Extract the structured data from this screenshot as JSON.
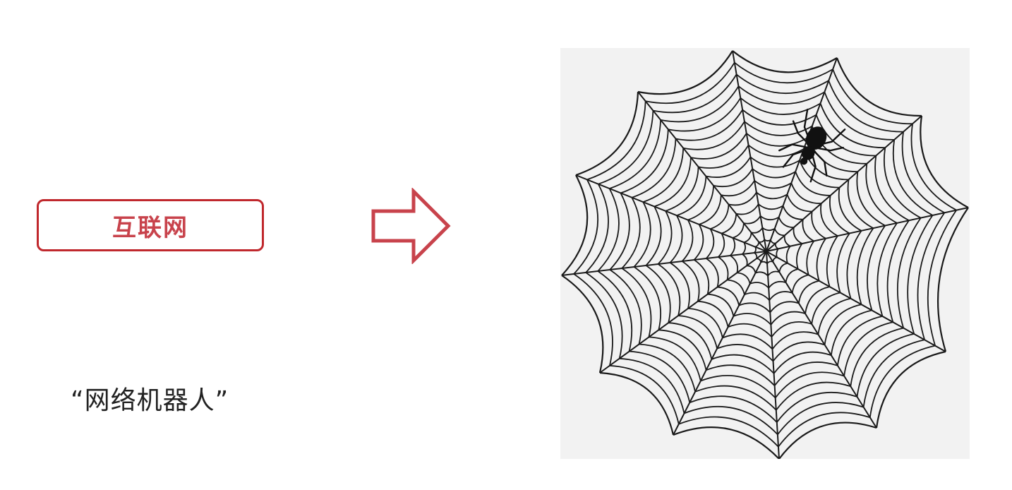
{
  "left_box": {
    "label": "互联网"
  },
  "caption": {
    "text": "“网络机器人”"
  },
  "colors": {
    "accent": "#c0282d",
    "label_text": "#c8434c",
    "web_background": "#f2f2f2",
    "web_lines": "#1a1a1a",
    "spider": "#111111"
  },
  "icons": {
    "arrow": "right-arrow-icon",
    "web": "spider-web-icon",
    "spider": "spider-icon"
  }
}
